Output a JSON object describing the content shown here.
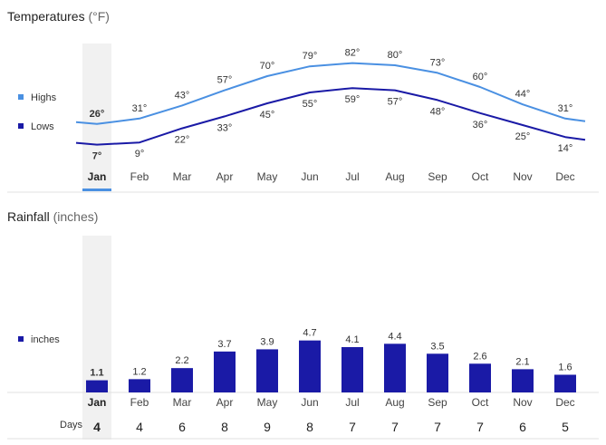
{
  "chart_data": [
    {
      "type": "line",
      "title": "Temperatures",
      "unit_label": "(°F)",
      "categories": [
        "Jan",
        "Feb",
        "Mar",
        "Apr",
        "May",
        "Jun",
        "Jul",
        "Aug",
        "Sep",
        "Oct",
        "Nov",
        "Dec"
      ],
      "selected_index": 0,
      "series": [
        {
          "name": "Highs",
          "values": [
            26,
            31,
            43,
            57,
            70,
            79,
            82,
            80,
            73,
            60,
            44,
            31
          ],
          "color": "#4a90e2"
        },
        {
          "name": "Lows",
          "values": [
            7,
            9,
            22,
            33,
            45,
            55,
            59,
            57,
            48,
            36,
            25,
            14
          ],
          "color": "#1a1aa6"
        }
      ],
      "value_suffix": "°",
      "grid": false
    },
    {
      "type": "bar",
      "title": "Rainfall",
      "unit_label": "(inches)",
      "categories": [
        "Jan",
        "Feb",
        "Mar",
        "Apr",
        "May",
        "Jun",
        "Jul",
        "Aug",
        "Sep",
        "Oct",
        "Nov",
        "Dec"
      ],
      "selected_index": 0,
      "series": [
        {
          "name": "inches",
          "values": [
            1.1,
            1.2,
            2.2,
            3.7,
            3.9,
            4.7,
            4.1,
            4.4,
            3.5,
            2.6,
            2.1,
            1.6
          ],
          "color": "#1a1aa6"
        }
      ],
      "days_label": "Days",
      "days": [
        4,
        4,
        6,
        8,
        9,
        8,
        7,
        7,
        7,
        7,
        6,
        5
      ],
      "grid": false
    }
  ]
}
